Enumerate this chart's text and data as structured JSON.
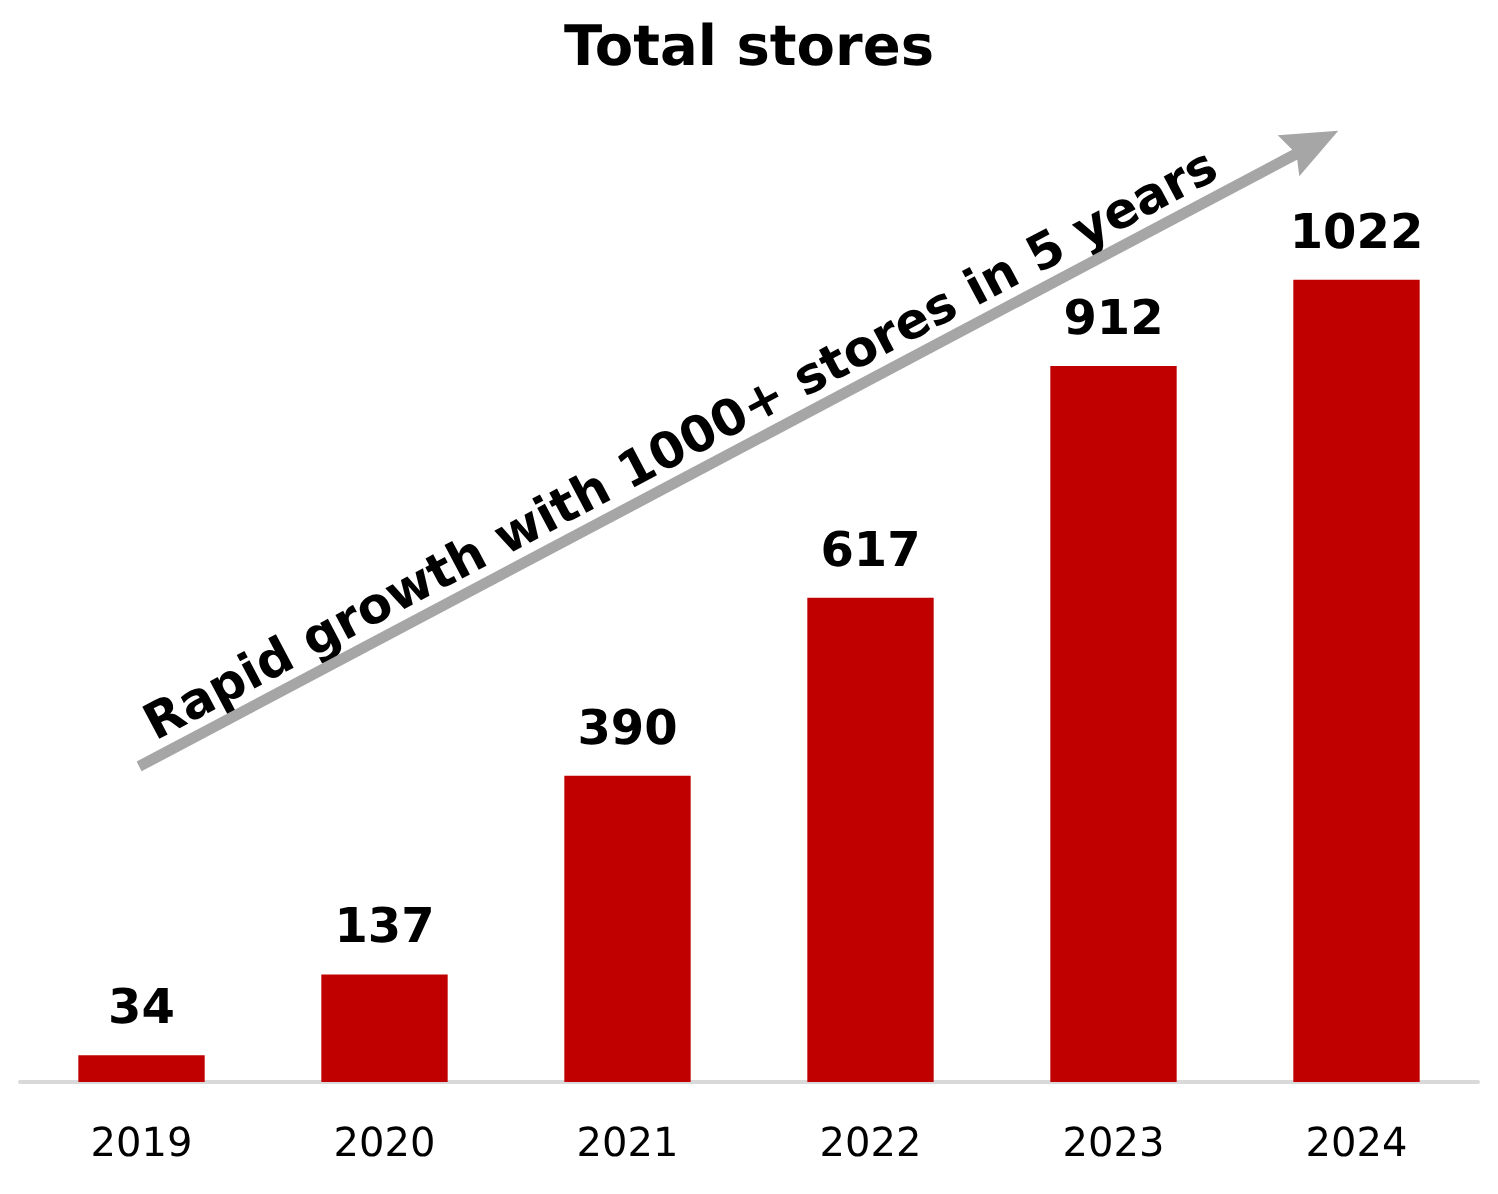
{
  "chart_data": {
    "type": "bar",
    "title": "Total stores",
    "categories": [
      "2019",
      "2020",
      "2021",
      "2022",
      "2023",
      "2024"
    ],
    "values": [
      34,
      137,
      390,
      617,
      912,
      1022
    ],
    "color": "#c00000",
    "data_labels": true,
    "annotations": [
      "Rapid growth with 1000+ stores in 5 years"
    ]
  }
}
